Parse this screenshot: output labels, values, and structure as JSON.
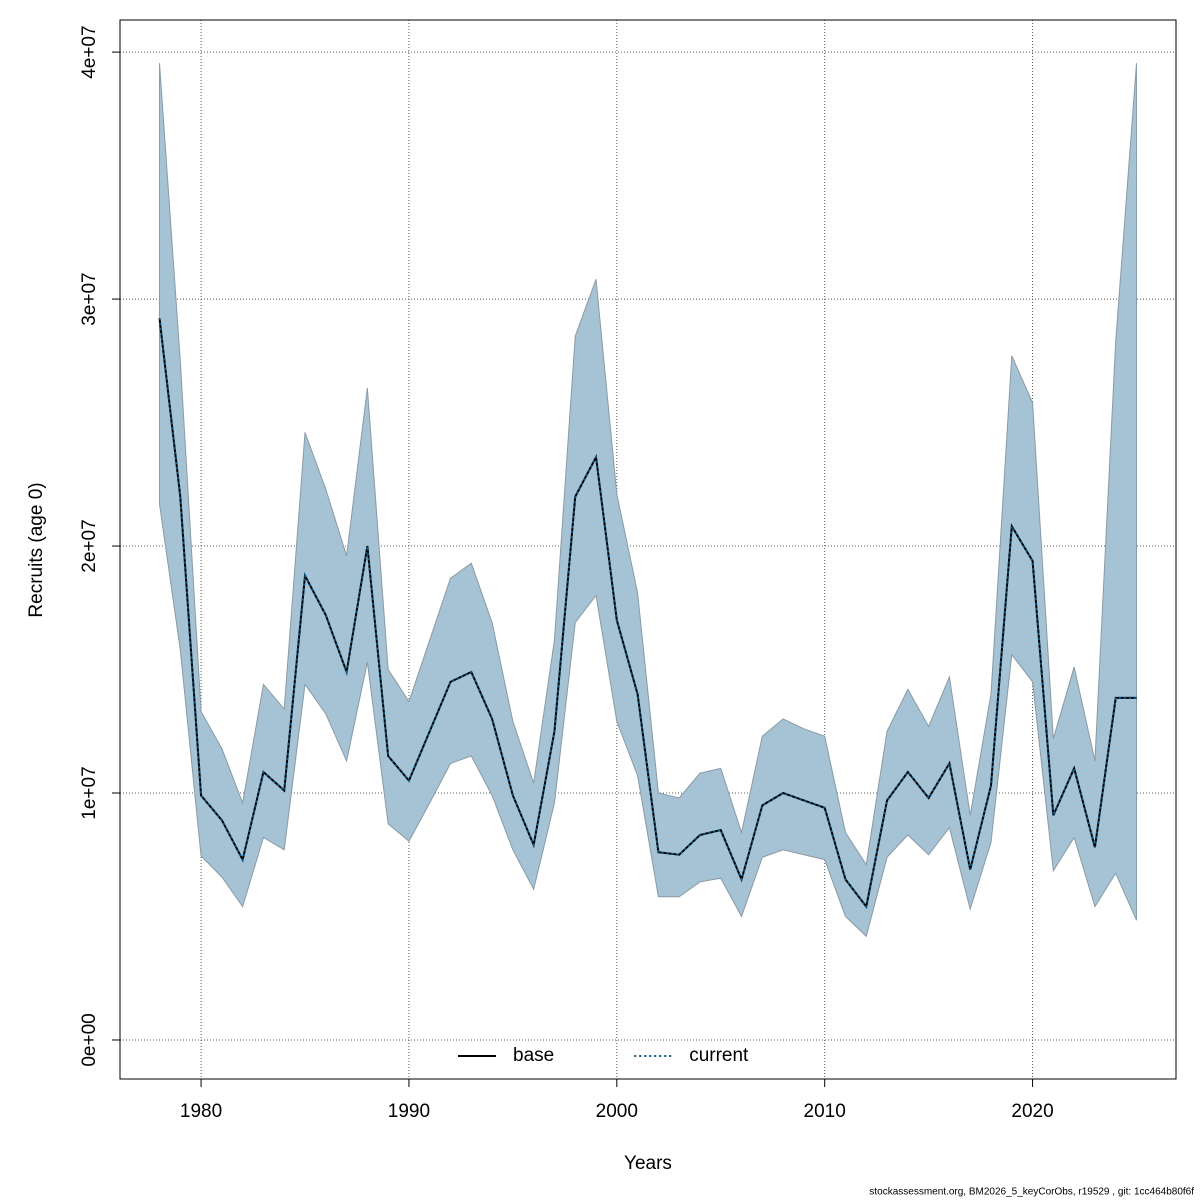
{
  "chart_data": {
    "type": "line",
    "x_label": "Years",
    "y_label": "Recruits (age 0)",
    "footer": "stockassessment.org, BM2026_5_keyCorObs, r19529 , git: 1cc464b80f6f",
    "x": [
      1978,
      1979,
      1980,
      1981,
      1982,
      1983,
      1984,
      1985,
      1986,
      1987,
      1988,
      1989,
      1990,
      1991,
      1992,
      1993,
      1994,
      1995,
      1996,
      1997,
      1998,
      1999,
      2000,
      2001,
      2002,
      2003,
      2004,
      2005,
      2006,
      2007,
      2008,
      2009,
      2010,
      2011,
      2012,
      2013,
      2014,
      2015,
      2016,
      2017,
      2018,
      2019,
      2020,
      2021,
      2022,
      2023,
      2024,
      2025
    ],
    "series": [
      {
        "name": "base",
        "color": "#000000",
        "dash": "solid",
        "values": [
          29230000.0,
          22000000.0,
          9900000.0,
          8900000.0,
          7300000.0,
          10850000.0,
          10100000.0,
          18800000.0,
          17200000.0,
          14900000.0,
          20000000.0,
          11500000.0,
          10500000.0,
          12500000.0,
          14500000.0,
          14900000.0,
          13000000.0,
          9900000.0,
          7900000.0,
          12500000.0,
          22000000.0,
          23600000.0,
          17000000.0,
          14000000.0,
          7600000.0,
          7500000.0,
          8300000.0,
          8500000.0,
          6500000.0,
          9500000.0,
          10000000.0,
          9700000.0,
          9400000.0,
          6500000.0,
          5400000.0,
          9700000.0,
          10850000.0,
          9800000.0,
          11200000.0,
          6900000.0,
          10300000.0,
          20800000.0,
          19400000.0,
          9100000.0,
          11000000.0,
          7800000.0,
          13850000.0,
          13850000.0
        ]
      },
      {
        "name": "current",
        "color": "#0b5a8c",
        "dash": "dotted",
        "values": [
          29230000.0,
          22000000.0,
          9900000.0,
          8900000.0,
          7300000.0,
          10850000.0,
          10100000.0,
          18800000.0,
          17200000.0,
          14900000.0,
          20000000.0,
          11500000.0,
          10500000.0,
          12500000.0,
          14500000.0,
          14900000.0,
          13000000.0,
          9900000.0,
          7900000.0,
          12500000.0,
          22000000.0,
          23600000.0,
          17000000.0,
          14000000.0,
          7600000.0,
          7500000.0,
          8300000.0,
          8500000.0,
          6500000.0,
          9500000.0,
          10000000.0,
          9700000.0,
          9400000.0,
          6500000.0,
          5400000.0,
          9700000.0,
          10850000.0,
          9800000.0,
          11200000.0,
          6900000.0,
          10300000.0,
          20800000.0,
          19400000.0,
          9100000.0,
          11000000.0,
          7800000.0,
          13850000.0,
          13850000.0
        ]
      }
    ],
    "band": {
      "color": "#a5c3d4",
      "upper": [
        39550000.0,
        27500000.0,
        13300000.0,
        11800000.0,
        9600000.0,
        14400000.0,
        13400000.0,
        24600000.0,
        22300000.0,
        19600000.0,
        26400000.0,
        15000000.0,
        13700000.0,
        16200000.0,
        18700000.0,
        19300000.0,
        16900000.0,
        12900000.0,
        10400000.0,
        16200000.0,
        28500000.0,
        30800000.0,
        22100000.0,
        18100000.0,
        10000000.0,
        9800000.0,
        10800000.0,
        11000000.0,
        8400000.0,
        12300000.0,
        13000000.0,
        12600000.0,
        12300000.0,
        8400000.0,
        7100000.0,
        12500000.0,
        14200000.0,
        12700000.0,
        14700000.0,
        9100000.0,
        14000000.0,
        27700000.0,
        25800000.0,
        12200000.0,
        15100000.0,
        11300000.0,
        28300000.0,
        39550000.0
      ],
      "lower": [
        21700000.0,
        15800000.0,
        7450000.0,
        6600000.0,
        5400000.0,
        8200000.0,
        7700000.0,
        14400000.0,
        13200000.0,
        11300000.0,
        15300000.0,
        8750000.0,
        8050000.0,
        9600000.0,
        11200000.0,
        11500000.0,
        9900000.0,
        7700000.0,
        6100000.0,
        9600000.0,
        16900000.0,
        18000000.0,
        12900000.0,
        10700000.0,
        5800000.0,
        5800000.0,
        6400000.0,
        6550000.0,
        5000000.0,
        7400000.0,
        7700000.0,
        7500000.0,
        7300000.0,
        5000000.0,
        4200000.0,
        7400000.0,
        8300000.0,
        7500000.0,
        8600000.0,
        5300000.0,
        8000000.0,
        15600000.0,
        14500000.0,
        6850000.0,
        8200000.0,
        5400000.0,
        6750000.0,
        4850000.0
      ]
    },
    "xlim": [
      1976.1,
      2026.9
    ],
    "ylim": [
      -1580000.0,
      41300000.0
    ],
    "xticks": [
      1980,
      1990,
      2000,
      2010,
      2020
    ],
    "yticks": [
      {
        "value": 0,
        "label": "0e+00"
      },
      {
        "value": 10000000.0,
        "label": "1e+07"
      },
      {
        "value": 20000000.0,
        "label": "2e+07"
      },
      {
        "value": 30000000.0,
        "label": "3e+07"
      },
      {
        "value": 40000000.0,
        "label": "4e+07"
      }
    ],
    "grid": true,
    "legend": "bottom"
  }
}
